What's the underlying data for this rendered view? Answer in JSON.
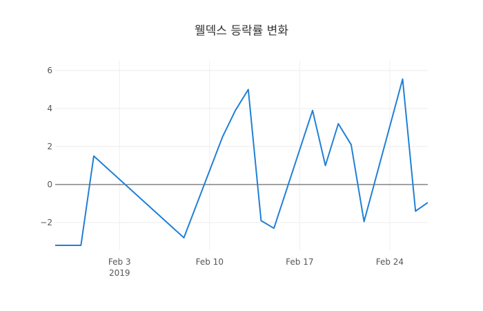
{
  "chart_data": {
    "type": "line",
    "title": "웰덱스 등락률 변화",
    "xlabel": "",
    "ylabel": "",
    "x_range": [
      "2019-01-29",
      "2019-02-26"
    ],
    "ylim": [
      -3.25,
      6
    ],
    "grid": true,
    "legend": "none",
    "line_color": "#1f7fd6",
    "y_ticks": [
      6,
      4,
      2,
      0,
      -2
    ],
    "y_tick_labels": [
      "6",
      "4",
      "2",
      "0",
      "−2"
    ],
    "x_ticks": [
      {
        "date": "2019-02-03",
        "label": "Feb 3",
        "sublabel": "2019"
      },
      {
        "date": "2019-02-10",
        "label": "Feb 10",
        "sublabel": ""
      },
      {
        "date": "2019-02-17",
        "label": "Feb 17",
        "sublabel": ""
      },
      {
        "date": "2019-02-24",
        "label": "Feb 24",
        "sublabel": ""
      }
    ],
    "series": [
      {
        "points": [
          {
            "x": "2019-01-29",
            "y": -3.2
          },
          {
            "x": "2019-01-31",
            "y": -3.2
          },
          {
            "x": "2019-02-01",
            "y": 1.5
          },
          {
            "x": "2019-02-08",
            "y": -2.8
          },
          {
            "x": "2019-02-11",
            "y": 2.5
          },
          {
            "x": "2019-02-12",
            "y": 3.9
          },
          {
            "x": "2019-02-13",
            "y": 5.0
          },
          {
            "x": "2019-02-14",
            "y": -1.9
          },
          {
            "x": "2019-02-15",
            "y": -2.3
          },
          {
            "x": "2019-02-18",
            "y": 3.9
          },
          {
            "x": "2019-02-19",
            "y": 1.0
          },
          {
            "x": "2019-02-20",
            "y": 3.2
          },
          {
            "x": "2019-02-21",
            "y": 2.1
          },
          {
            "x": "2019-02-22",
            "y": -1.95
          },
          {
            "x": "2019-02-25",
            "y": 5.55
          },
          {
            "x": "2019-02-26",
            "y": -1.4
          },
          {
            "x": "2019-02-27",
            "y": -0.95
          }
        ]
      }
    ]
  }
}
